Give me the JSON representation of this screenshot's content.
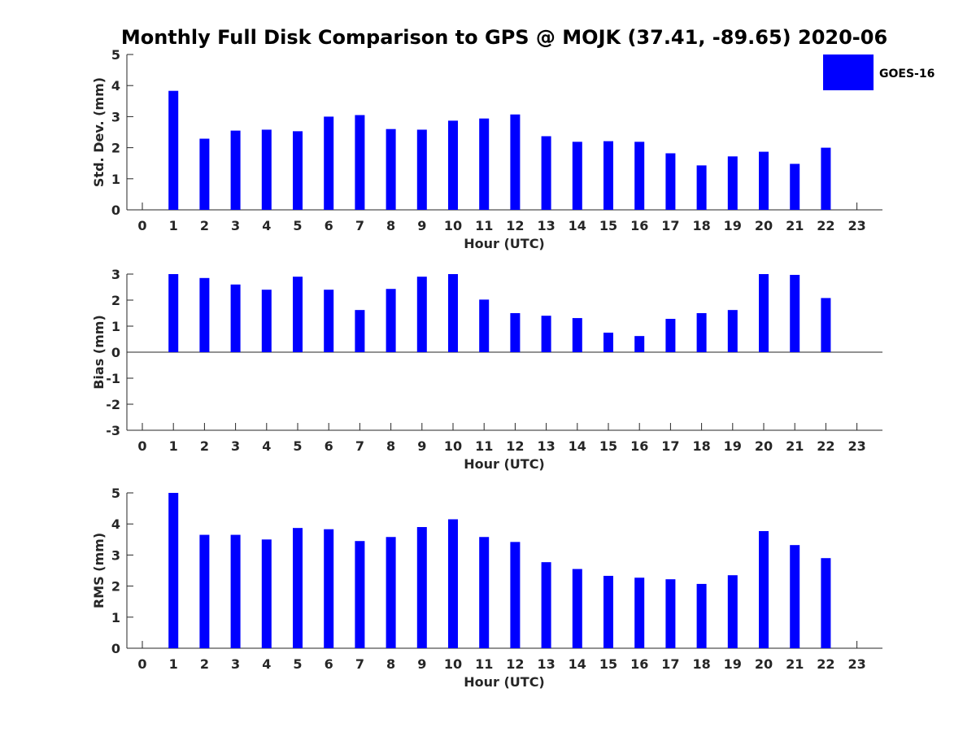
{
  "title": "Monthly Full Disk Comparison to GPS @ MOJK (37.41, -89.65) 2020-06",
  "legend": {
    "label": "GOES-16",
    "color": "#0000ff"
  },
  "chart_data": [
    {
      "type": "bar",
      "id": "std",
      "xlabel": "Hour (UTC)",
      "ylabel": "Std. Dev. (mm)",
      "ylim": [
        0,
        5
      ],
      "yticks": [
        "0",
        "1",
        "2",
        "3",
        "4",
        "5"
      ],
      "categories": [
        "0",
        "1",
        "2",
        "3",
        "4",
        "5",
        "6",
        "7",
        "8",
        "9",
        "10",
        "11",
        "12",
        "13",
        "14",
        "15",
        "16",
        "17",
        "18",
        "19",
        "20",
        "21",
        "22",
        "23"
      ],
      "series": [
        {
          "name": "GOES-16",
          "values": [
            null,
            3.83,
            2.29,
            2.55,
            2.58,
            2.53,
            3.0,
            3.05,
            2.6,
            2.58,
            2.87,
            2.94,
            3.07,
            2.37,
            2.19,
            2.21,
            2.19,
            1.82,
            1.43,
            1.72,
            1.87,
            1.48,
            2.0,
            null
          ]
        }
      ]
    },
    {
      "type": "bar",
      "id": "bias",
      "xlabel": "Hour (UTC)",
      "ylabel": "Bias (mm)",
      "ylim": [
        -3,
        3
      ],
      "yticks": [
        "-3",
        "-2",
        "-1",
        "0",
        "1",
        "2",
        "3"
      ],
      "categories": [
        "0",
        "1",
        "2",
        "3",
        "4",
        "5",
        "6",
        "7",
        "8",
        "9",
        "10",
        "11",
        "12",
        "13",
        "14",
        "15",
        "16",
        "17",
        "18",
        "19",
        "20",
        "21",
        "22",
        "23"
      ],
      "series": [
        {
          "name": "GOES-16",
          "values": [
            null,
            3.0,
            2.85,
            2.6,
            2.4,
            2.9,
            2.4,
            1.62,
            2.43,
            2.9,
            3.0,
            2.02,
            1.5,
            1.4,
            1.31,
            0.75,
            0.62,
            1.28,
            1.5,
            1.62,
            3.0,
            2.97,
            2.08,
            null
          ]
        }
      ]
    },
    {
      "type": "bar",
      "id": "rms",
      "xlabel": "Hour (UTC)",
      "ylabel": "RMS (mm)",
      "ylim": [
        0,
        5
      ],
      "yticks": [
        "0",
        "1",
        "2",
        "3",
        "4",
        "5"
      ],
      "categories": [
        "0",
        "1",
        "2",
        "3",
        "4",
        "5",
        "6",
        "7",
        "8",
        "9",
        "10",
        "11",
        "12",
        "13",
        "14",
        "15",
        "16",
        "17",
        "18",
        "19",
        "20",
        "21",
        "22",
        "23"
      ],
      "series": [
        {
          "name": "GOES-16",
          "values": [
            null,
            5.0,
            3.65,
            3.65,
            3.5,
            3.87,
            3.83,
            3.45,
            3.58,
            3.9,
            4.15,
            3.58,
            3.42,
            2.77,
            2.55,
            2.33,
            2.27,
            2.22,
            2.07,
            2.35,
            3.77,
            3.32,
            2.9,
            null
          ]
        }
      ]
    }
  ]
}
